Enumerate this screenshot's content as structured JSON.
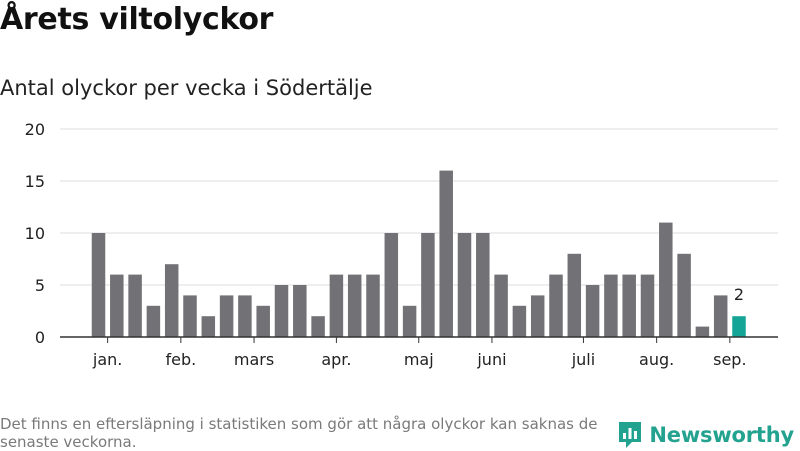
{
  "header": {
    "title": "Årets viltolyckor",
    "subtitle": "Antal olyckor per vecka i Södertälje"
  },
  "footer": {
    "note": "Det finns en eftersläpning i statistiken som gör att några olyckor kan saknas de senaste veckorna.",
    "brand_name": "Newsworthy",
    "brand_icon": "newsworthy-logo-icon"
  },
  "colors": {
    "bar": "#727176",
    "highlight": "#14a597",
    "grid": "#dddddd",
    "axis": "#333333",
    "brand": "#23a38f"
  },
  "chart_data": {
    "type": "bar",
    "title": "Årets viltolyckor",
    "subtitle": "Antal olyckor per vecka i Södertälje",
    "xlabel": "",
    "ylabel": "",
    "ylim": [
      0,
      20
    ],
    "yticks": [
      0,
      5,
      10,
      15,
      20
    ],
    "grid": true,
    "values": [
      10,
      6,
      6,
      3,
      7,
      4,
      2,
      4,
      4,
      3,
      5,
      5,
      2,
      6,
      6,
      6,
      10,
      3,
      10,
      16,
      10,
      10,
      6,
      3,
      4,
      6,
      8,
      5,
      6,
      6,
      6,
      11,
      8,
      1,
      4,
      2
    ],
    "month_labels": [
      {
        "label": "jan.",
        "index": 0.5
      },
      {
        "label": "feb.",
        "index": 4.5
      },
      {
        "label": "mars",
        "index": 8.5
      },
      {
        "label": "apr.",
        "index": 13
      },
      {
        "label": "maj",
        "index": 17.5
      },
      {
        "label": "juni",
        "index": 21.5
      },
      {
        "label": "juli",
        "index": 26.5
      },
      {
        "label": "aug.",
        "index": 30.5
      },
      {
        "label": "sep.",
        "index": 34.5
      }
    ],
    "highlight_index": 35,
    "highlight_label": "2"
  }
}
